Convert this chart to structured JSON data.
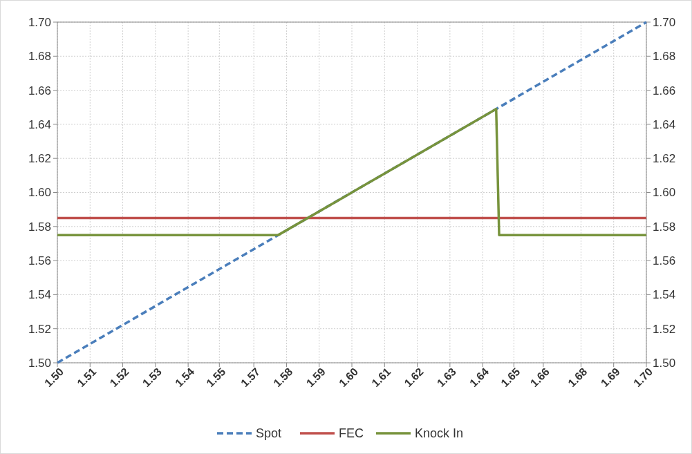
{
  "chart_data": {
    "type": "line",
    "xlim": [
      1.5,
      1.7
    ],
    "ylim": [
      1.5,
      1.7
    ],
    "y2lim": [
      1.5,
      1.7
    ],
    "xticks": [
      {
        "value": 1.5,
        "label": "1.50"
      },
      {
        "value": 1.5111,
        "label": "1.51"
      },
      {
        "value": 1.5222,
        "label": "1.52"
      },
      {
        "value": 1.5333,
        "label": "1.53"
      },
      {
        "value": 1.5444,
        "label": "1.54"
      },
      {
        "value": 1.555,
        "label": "1.55"
      },
      {
        "value": 1.5667,
        "label": "1.57"
      },
      {
        "value": 1.5778,
        "label": "1.58"
      },
      {
        "value": 1.5889,
        "label": "1.59"
      },
      {
        "value": 1.6,
        "label": "1.60"
      },
      {
        "value": 1.6111,
        "label": "1.61"
      },
      {
        "value": 1.6222,
        "label": "1.62"
      },
      {
        "value": 1.6333,
        "label": "1.63"
      },
      {
        "value": 1.6444,
        "label": "1.64"
      },
      {
        "value": 1.655,
        "label": "1.65"
      },
      {
        "value": 1.665,
        "label": "1.66"
      },
      {
        "value": 1.6778,
        "label": "1.68"
      },
      {
        "value": 1.6889,
        "label": "1.69"
      },
      {
        "value": 1.7,
        "label": "1.70"
      }
    ],
    "yticks": [
      {
        "value": 1.5,
        "label": "1.50"
      },
      {
        "value": 1.52,
        "label": "1.52"
      },
      {
        "value": 1.54,
        "label": "1.54"
      },
      {
        "value": 1.56,
        "label": "1.56"
      },
      {
        "value": 1.58,
        "label": "1.58"
      },
      {
        "value": 1.6,
        "label": "1.60"
      },
      {
        "value": 1.62,
        "label": "1.62"
      },
      {
        "value": 1.64,
        "label": "1.64"
      },
      {
        "value": 1.66,
        "label": "1.66"
      },
      {
        "value": 1.68,
        "label": "1.68"
      },
      {
        "value": 1.7,
        "label": "1.70"
      }
    ],
    "y2ticks": [
      {
        "value": 1.5,
        "label": "1.50"
      },
      {
        "value": 1.52,
        "label": "1.52"
      },
      {
        "value": 1.54,
        "label": "1.54"
      },
      {
        "value": 1.56,
        "label": "1.56"
      },
      {
        "value": 1.58,
        "label": "1.58"
      },
      {
        "value": 1.6,
        "label": "1.60"
      },
      {
        "value": 1.62,
        "label": "1.62"
      },
      {
        "value": 1.64,
        "label": "1.64"
      },
      {
        "value": 1.66,
        "label": "1.66"
      },
      {
        "value": 1.68,
        "label": "1.68"
      },
      {
        "value": 1.7,
        "label": "1.70"
      }
    ],
    "grid": true,
    "legend": "bottom",
    "series": [
      {
        "name": "Spot",
        "color": "#4a7ebb",
        "line_style": "dashed",
        "x": [
          1.5,
          1.7
        ],
        "values": [
          1.5,
          1.7
        ]
      },
      {
        "name": "FEC",
        "color": "#c0504d",
        "line_style": "solid",
        "x": [
          1.5,
          1.7
        ],
        "values": [
          1.585,
          1.585
        ]
      },
      {
        "name": "Knock In",
        "color": "#77933c",
        "line_style": "solid",
        "x": [
          1.5,
          1.575,
          1.649,
          1.65,
          1.7
        ],
        "values": [
          1.575,
          1.575,
          1.649,
          1.575,
          1.575
        ]
      }
    ]
  }
}
